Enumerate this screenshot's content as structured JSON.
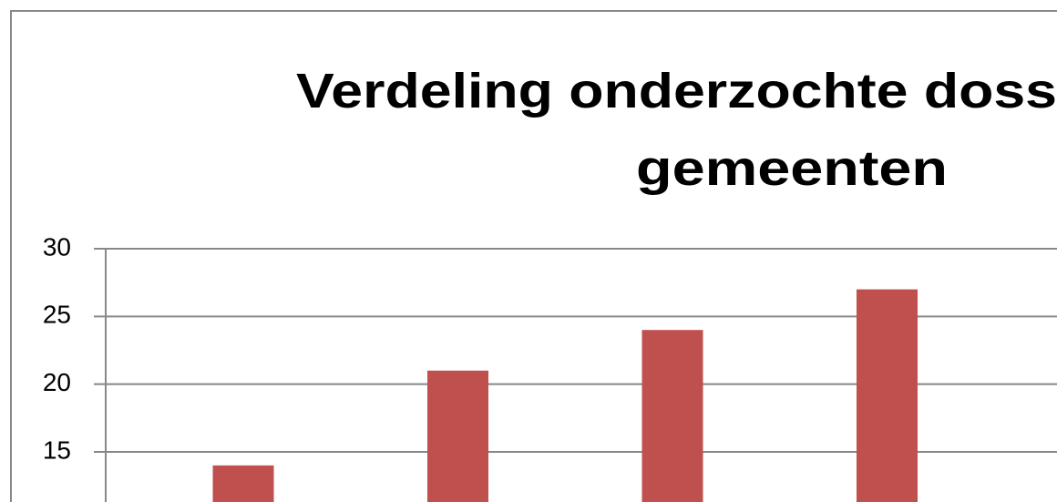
{
  "chart_data": {
    "type": "bar",
    "title": [
      "Verdeling onderzochte doss",
      "gemeenten"
    ],
    "categories": [
      null,
      null,
      null,
      null
    ],
    "values": [
      14,
      21,
      24,
      27
    ],
    "color": "#c0504d",
    "ylim": [
      11.3,
      30
    ],
    "yticks": [
      15,
      20,
      25,
      30
    ],
    "grid": true
  }
}
